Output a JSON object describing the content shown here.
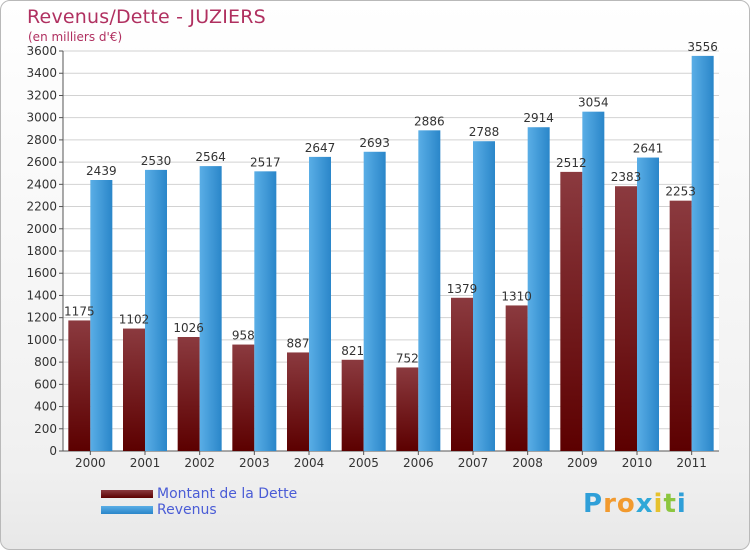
{
  "title": "Revenus/Dette - JUZIERS",
  "subtitle": "(en milliers d'€)",
  "logo": {
    "letters": [
      "P",
      "r",
      "o",
      "x",
      "i",
      "t",
      "i"
    ],
    "colors": [
      "#2f9fd8",
      "#f29a2e",
      "#f29a2e",
      "#2fa8d8",
      "#e6c12d",
      "#8cc63f",
      "#2f9fd8"
    ]
  },
  "colors": {
    "dette_top": "#8b3a3f",
    "dette_bottom": "#5c0000",
    "revenus_top": "#5aaee6",
    "revenus_bottom": "#2a86c9",
    "title": "#b03060",
    "legend_text": "#4a5cd6"
  },
  "chart_data": {
    "type": "bar",
    "categories": [
      "2000",
      "2001",
      "2002",
      "2003",
      "2004",
      "2005",
      "2006",
      "2007",
      "2008",
      "2009",
      "2010",
      "2011"
    ],
    "series": [
      {
        "name": "Montant de la Dette",
        "values": [
          1175,
          1102,
          1026,
          958,
          887,
          821,
          752,
          1379,
          1310,
          2512,
          2383,
          2253
        ]
      },
      {
        "name": "Revenus",
        "values": [
          2439,
          2530,
          2564,
          2517,
          2647,
          2693,
          2886,
          2788,
          2914,
          3054,
          2641,
          3556
        ]
      }
    ],
    "ylim": [
      0,
      3600
    ],
    "yticks": [
      0,
      200,
      400,
      600,
      800,
      1000,
      1200,
      1400,
      1600,
      1800,
      2000,
      2200,
      2400,
      2600,
      2800,
      3000,
      3200,
      3400,
      3600
    ],
    "grid": true,
    "legend": "bottom-left"
  }
}
